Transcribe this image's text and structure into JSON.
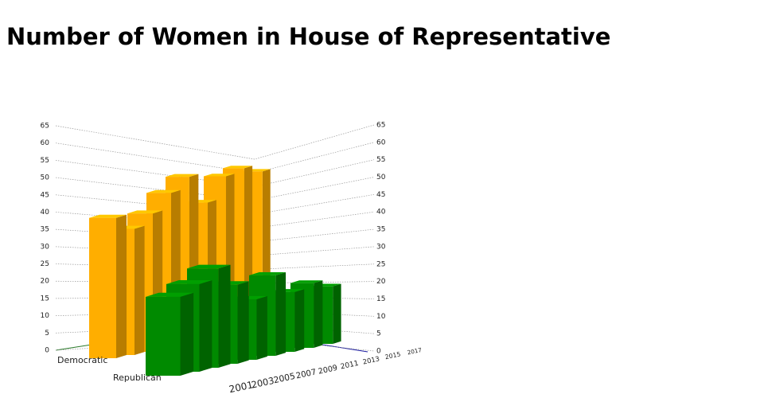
{
  "chart_data": {
    "type": "bar3d",
    "title": "Number of Women in House of Representative",
    "categories": [
      "2001",
      "2003",
      "2005",
      "2007",
      "2009",
      "2011",
      "2013",
      "2015",
      "2017"
    ],
    "series": [
      {
        "name": "Democratic",
        "color": "#ffae00",
        "values": [
          41,
          38,
          43,
          50,
          56,
          48,
          58,
          62,
          62
        ]
      },
      {
        "name": "Republican",
        "color": "#008a00",
        "values": [
          18,
          21,
          25,
          21,
          17,
          24,
          19,
          22,
          21
        ]
      }
    ],
    "ylim": [
      0,
      65
    ],
    "yticks": [
      0,
      5,
      10,
      15,
      20,
      25,
      30,
      35,
      40,
      45,
      50,
      55,
      60,
      65
    ],
    "grid": true
  }
}
